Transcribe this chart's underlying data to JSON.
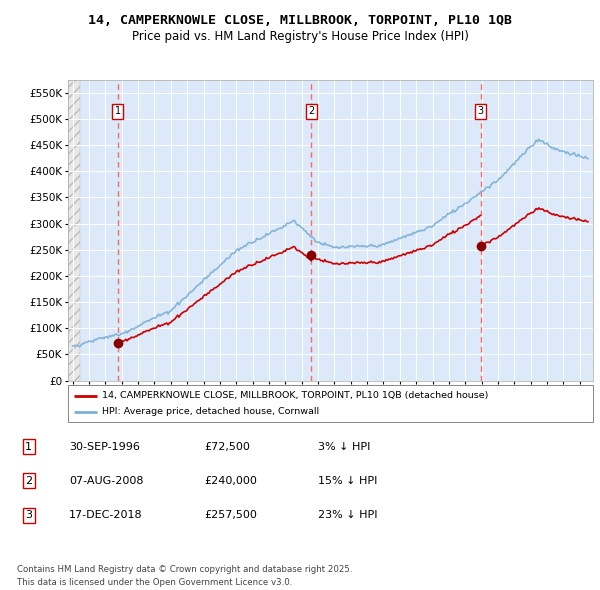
{
  "title1": "14, CAMPERKNOWLE CLOSE, MILLBROOK, TORPOINT, PL10 1QB",
  "title2": "Price paid vs. HM Land Registry's House Price Index (HPI)",
  "ytick_values": [
    0,
    50000,
    100000,
    150000,
    200000,
    250000,
    300000,
    350000,
    400000,
    450000,
    500000,
    550000
  ],
  "ylim": [
    0,
    575000
  ],
  "xlim_start": 1993.7,
  "xlim_end": 2025.8,
  "background_color": "#dce9f8",
  "grid_color": "#ffffff",
  "red_line_color": "#cc0000",
  "blue_line_color": "#7bafd4",
  "sale1_date": 1996.747,
  "sale1_price": 72500,
  "sale2_date": 2008.589,
  "sale2_price": 240000,
  "sale3_date": 2018.956,
  "sale3_price": 257500,
  "vline_color": "#ff6666",
  "legend_label1": "14, CAMPERKNOWLE CLOSE, MILLBROOK, TORPOINT, PL10 1QB (detached house)",
  "legend_label2": "HPI: Average price, detached house, Cornwall",
  "table_row1": [
    "1",
    "30-SEP-1996",
    "£72,500",
    "3% ↓ HPI"
  ],
  "table_row2": [
    "2",
    "07-AUG-2008",
    "£240,000",
    "15% ↓ HPI"
  ],
  "table_row3": [
    "3",
    "17-DEC-2018",
    "£257,500",
    "23% ↓ HPI"
  ],
  "footnote": "Contains HM Land Registry data © Crown copyright and database right 2025.\nThis data is licensed under the Open Government Licence v3.0."
}
